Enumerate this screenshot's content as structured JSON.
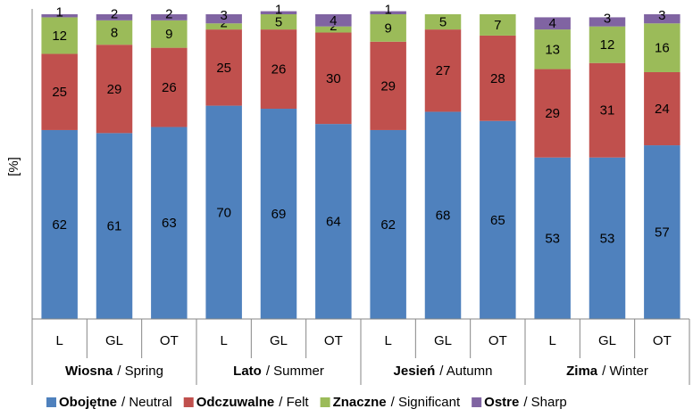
{
  "chart_data": {
    "type": "stacked_bar",
    "y_label": "[%]",
    "ylim": [
      0,
      100
    ],
    "categories": [
      "L",
      "GL",
      "OT",
      "L",
      "GL",
      "OT",
      "L",
      "GL",
      "OT",
      "L",
      "GL",
      "OT"
    ],
    "groups": [
      {
        "name": "Wiosna",
        "name_en": "/ Spring"
      },
      {
        "name": "Lato",
        "name_en": "/ Summer"
      },
      {
        "name": "Jesień",
        "name_en": "/ Autumn"
      },
      {
        "name": "Zima",
        "name_en": "/ Winter"
      }
    ],
    "series": [
      {
        "name": "Obojętne",
        "name_en": "/ Neutral",
        "color": "#4f81bd",
        "values": [
          62,
          61,
          63,
          70,
          69,
          64,
          62,
          68,
          65,
          53,
          53,
          57
        ]
      },
      {
        "name": "Odczuwalne",
        "name_en": "/ Felt",
        "color": "#c0504d",
        "values": [
          25,
          29,
          26,
          25,
          26,
          30,
          29,
          27,
          28,
          29,
          31,
          24
        ]
      },
      {
        "name": "Znaczne",
        "name_en": "/ Significant",
        "color": "#9bbb59",
        "values": [
          12,
          8,
          9,
          2,
          5,
          2,
          9,
          5,
          7,
          13,
          12,
          16
        ]
      },
      {
        "name": "Ostre",
        "name_en": "/ Sharp",
        "color": "#8064a2",
        "values": [
          1,
          2,
          2,
          3,
          1,
          4,
          1,
          null,
          null,
          4,
          3,
          3
        ]
      }
    ]
  }
}
